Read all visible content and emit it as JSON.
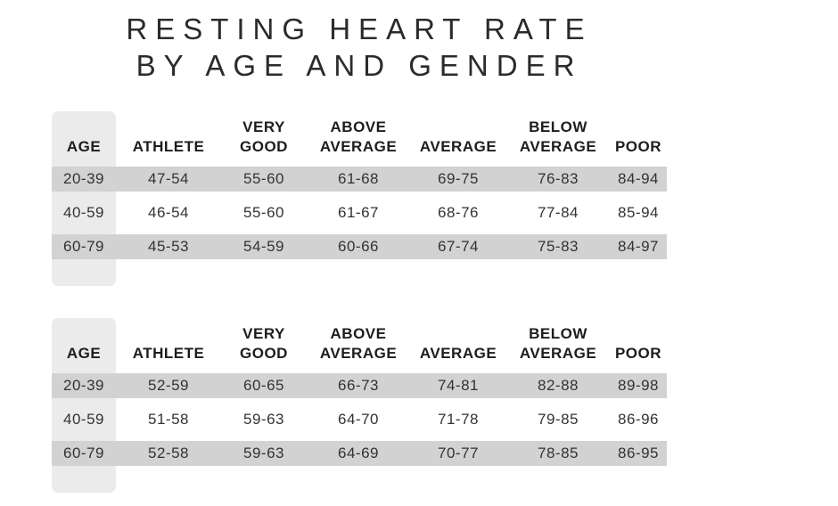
{
  "title": {
    "line1": "RESTING HEART RATE",
    "line2": "BY AGE AND GENDER"
  },
  "colors": {
    "stripe_row": "#d2d2d2",
    "age_column_panel": "#ebebeb",
    "title_text": "#2b2b2b",
    "header_text": "#1d1d1d",
    "cell_text": "#333333",
    "background": "#ffffff"
  },
  "tables": [
    {
      "headers": [
        {
          "top": "",
          "bottom": "AGE"
        },
        {
          "top": "",
          "bottom": "ATHLETE"
        },
        {
          "top": "VERY",
          "bottom": "GOOD"
        },
        {
          "top": "ABOVE",
          "bottom": "AVERAGE"
        },
        {
          "top": "",
          "bottom": "AVERAGE"
        },
        {
          "top": "BELOW",
          "bottom": "AVERAGE"
        },
        {
          "top": "",
          "bottom": "POOR"
        }
      ],
      "rows": [
        [
          "20-39",
          "47-54",
          "55-60",
          "61-68",
          "69-75",
          "76-83",
          "84-94"
        ],
        [
          "40-59",
          "46-54",
          "55-60",
          "61-67",
          "68-76",
          "77-84",
          "85-94"
        ],
        [
          "60-79",
          "45-53",
          "54-59",
          "60-66",
          "67-74",
          "75-83",
          "84-97"
        ]
      ]
    },
    {
      "headers": [
        {
          "top": "",
          "bottom": "AGE"
        },
        {
          "top": "",
          "bottom": "ATHLETE"
        },
        {
          "top": "VERY",
          "bottom": "GOOD"
        },
        {
          "top": "ABOVE",
          "bottom": "AVERAGE"
        },
        {
          "top": "",
          "bottom": "AVERAGE"
        },
        {
          "top": "BELOW",
          "bottom": "AVERAGE"
        },
        {
          "top": "",
          "bottom": "POOR"
        }
      ],
      "rows": [
        [
          "20-39",
          "52-59",
          "60-65",
          "66-73",
          "74-81",
          "82-88",
          "89-98"
        ],
        [
          "40-59",
          "51-58",
          "59-63",
          "64-70",
          "71-78",
          "79-85",
          "86-96"
        ],
        [
          "60-79",
          "52-58",
          "59-63",
          "64-69",
          "70-77",
          "78-85",
          "86-95"
        ]
      ]
    }
  ],
  "chart_data": [
    {
      "type": "table",
      "title": "Resting heart rate by age and gender — upper table",
      "columns": [
        "AGE",
        "ATHLETE",
        "VERY GOOD",
        "ABOVE AVERAGE",
        "AVERAGE",
        "BELOW AVERAGE",
        "POOR"
      ],
      "rows": [
        [
          "20-39",
          "47-54",
          "55-60",
          "61-68",
          "69-75",
          "76-83",
          "84-94"
        ],
        [
          "40-59",
          "46-54",
          "55-60",
          "61-67",
          "68-76",
          "77-84",
          "85-94"
        ],
        [
          "60-79",
          "45-53",
          "54-59",
          "60-66",
          "67-74",
          "75-83",
          "84-97"
        ]
      ]
    },
    {
      "type": "table",
      "title": "Resting heart rate by age and gender — lower table",
      "columns": [
        "AGE",
        "ATHLETE",
        "VERY GOOD",
        "ABOVE AVERAGE",
        "AVERAGE",
        "BELOW AVERAGE",
        "POOR"
      ],
      "rows": [
        [
          "20-39",
          "52-59",
          "60-65",
          "66-73",
          "74-81",
          "82-88",
          "89-98"
        ],
        [
          "40-59",
          "51-58",
          "59-63",
          "64-70",
          "71-78",
          "79-85",
          "86-96"
        ],
        [
          "60-79",
          "52-58",
          "59-63",
          "64-69",
          "70-77",
          "78-85",
          "86-95"
        ]
      ]
    }
  ]
}
